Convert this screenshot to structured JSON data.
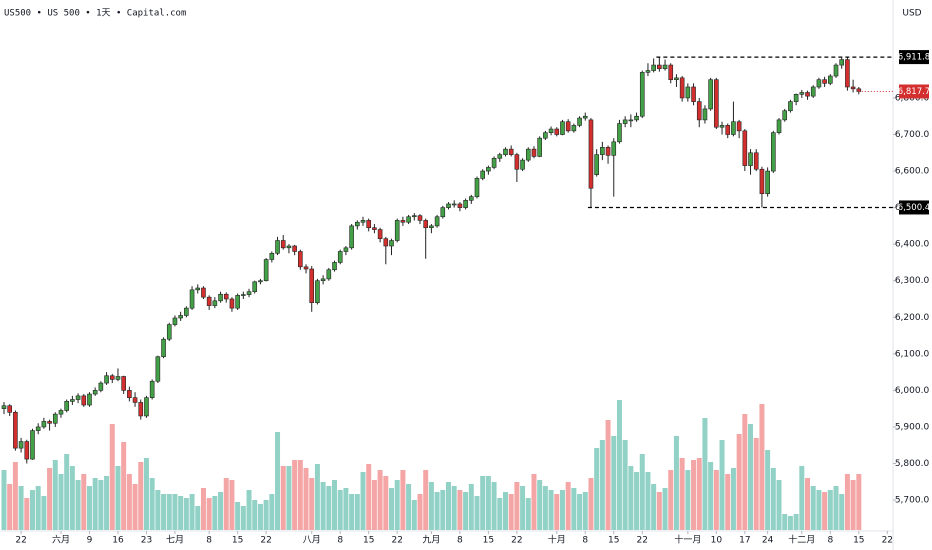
{
  "chart_data": {
    "type": "candlestick",
    "title": "US500 • US 500 • 1天 • Capital.com",
    "currency": "USD",
    "up_color": "#43a047",
    "down_color": "#d32f2f",
    "up_volume_color": "#92d2c6",
    "down_volume_color": "#f4a6a6",
    "xlim": [
      -0.7,
      156
    ],
    "ylim": [
      5618,
      7068
    ],
    "yticks": [
      {
        "value": 5700,
        "label": "5,700.0"
      },
      {
        "value": 5800,
        "label": "5,800.0"
      },
      {
        "value": 5900,
        "label": "5,900.0"
      },
      {
        "value": 6000,
        "label": "6,000.0"
      },
      {
        "value": 6100,
        "label": "6,100.0"
      },
      {
        "value": 6200,
        "label": "6,200.0"
      },
      {
        "value": 6300,
        "label": "6,300.0"
      },
      {
        "value": 6400,
        "label": "6,400.0"
      },
      {
        "value": 6500,
        "label": "6,500.0"
      },
      {
        "value": 6600,
        "label": "6,600.0"
      },
      {
        "value": 6700,
        "label": "6,700.0"
      },
      {
        "value": 6800,
        "label": "6,800.0"
      }
    ],
    "xticks": [
      {
        "value": 3,
        "label": "22"
      },
      {
        "value": 10,
        "label": "六月"
      },
      {
        "value": 15,
        "label": "9"
      },
      {
        "value": 20,
        "label": "16"
      },
      {
        "value": 25,
        "label": "23"
      },
      {
        "value": 30,
        "label": "七月"
      },
      {
        "value": 36,
        "label": "8"
      },
      {
        "value": 41,
        "label": "15"
      },
      {
        "value": 46,
        "label": "22"
      },
      {
        "value": 54,
        "label": "八月"
      },
      {
        "value": 59,
        "label": "8"
      },
      {
        "value": 64,
        "label": "15"
      },
      {
        "value": 69,
        "label": "22"
      },
      {
        "value": 75,
        "label": "九月"
      },
      {
        "value": 80,
        "label": "8"
      },
      {
        "value": 85,
        "label": "15"
      },
      {
        "value": 90,
        "label": "22"
      },
      {
        "value": 97,
        "label": "十月"
      },
      {
        "value": 102,
        "label": "8"
      },
      {
        "value": 107,
        "label": "15"
      },
      {
        "value": 112,
        "label": "22"
      },
      {
        "value": 120,
        "label": "十一月"
      },
      {
        "value": 125,
        "label": "10"
      },
      {
        "value": 130,
        "label": "17"
      },
      {
        "value": 134,
        "label": "24"
      },
      {
        "value": 140,
        "label": "十二月"
      },
      {
        "value": 145,
        "label": "8"
      },
      {
        "value": 150,
        "label": "15"
      },
      {
        "value": 155,
        "label": "22"
      }
    ],
    "levels": [
      {
        "value": 6911.8,
        "label": "6,911.8",
        "from": 115,
        "color": "#000000"
      },
      {
        "value": 6500.4,
        "label": "6,500.4",
        "from": 103,
        "color": "#000000"
      }
    ],
    "last_price": {
      "value": 6817.7,
      "label": "6,817.7",
      "color": "#d32f2f"
    },
    "ohlc": [
      [
        5950,
        5968,
        5935,
        5958
      ],
      [
        5958,
        5962,
        5930,
        5940
      ],
      [
        5940,
        5945,
        5835,
        5842
      ],
      [
        5842,
        5870,
        5830,
        5860
      ],
      [
        5860,
        5865,
        5800,
        5812
      ],
      [
        5812,
        5895,
        5810,
        5890
      ],
      [
        5890,
        5910,
        5880,
        5900
      ],
      [
        5900,
        5925,
        5895,
        5915
      ],
      [
        5915,
        5920,
        5890,
        5910
      ],
      [
        5910,
        5940,
        5900,
        5935
      ],
      [
        5935,
        5950,
        5925,
        5945
      ],
      [
        5945,
        5975,
        5940,
        5970
      ],
      [
        5970,
        5985,
        5960,
        5975
      ],
      [
        5975,
        5992,
        5965,
        5985
      ],
      [
        5985,
        5990,
        5955,
        5960
      ],
      [
        5960,
        5995,
        5955,
        5990
      ],
      [
        5990,
        6008,
        5985,
        6000
      ],
      [
        6000,
        6025,
        5995,
        6020
      ],
      [
        6020,
        6050,
        6015,
        6040
      ],
      [
        6040,
        6045,
        6020,
        6030
      ],
      [
        6030,
        6060,
        6025,
        6038
      ],
      [
        6038,
        6040,
        5990,
        6000
      ],
      [
        6000,
        6010,
        5970,
        5980
      ],
      [
        5980,
        5995,
        5955,
        5967
      ],
      [
        5967,
        5975,
        5920,
        5930
      ],
      [
        5930,
        5985,
        5925,
        5980
      ],
      [
        5980,
        6030,
        5975,
        6025
      ],
      [
        6025,
        6095,
        6020,
        6092
      ],
      [
        6092,
        6145,
        6088,
        6140
      ],
      [
        6140,
        6185,
        6135,
        6180
      ],
      [
        6180,
        6205,
        6175,
        6198
      ],
      [
        6198,
        6215,
        6190,
        6205
      ],
      [
        6205,
        6230,
        6200,
        6225
      ],
      [
        6225,
        6285,
        6220,
        6275
      ],
      [
        6275,
        6290,
        6265,
        6280
      ],
      [
        6280,
        6285,
        6250,
        6255
      ],
      [
        6255,
        6260,
        6220,
        6232
      ],
      [
        6232,
        6255,
        6225,
        6245
      ],
      [
        6245,
        6270,
        6240,
        6263
      ],
      [
        6263,
        6268,
        6240,
        6250
      ],
      [
        6250,
        6255,
        6215,
        6225
      ],
      [
        6225,
        6265,
        6220,
        6260
      ],
      [
        6260,
        6270,
        6250,
        6262
      ],
      [
        6262,
        6278,
        6255,
        6270
      ],
      [
        6270,
        6300,
        6265,
        6297
      ],
      [
        6297,
        6305,
        6290,
        6300
      ],
      [
        6300,
        6362,
        6298,
        6358
      ],
      [
        6358,
        6380,
        6350,
        6375
      ],
      [
        6375,
        6420,
        6370,
        6410
      ],
      [
        6410,
        6425,
        6385,
        6390
      ],
      [
        6390,
        6400,
        6375,
        6395
      ],
      [
        6395,
        6398,
        6370,
        6380
      ],
      [
        6380,
        6385,
        6330,
        6338
      ],
      [
        6338,
        6345,
        6320,
        6332
      ],
      [
        6332,
        6340,
        6215,
        6240
      ],
      [
        6240,
        6305,
        6235,
        6300
      ],
      [
        6300,
        6315,
        6290,
        6305
      ],
      [
        6305,
        6335,
        6300,
        6330
      ],
      [
        6330,
        6355,
        6325,
        6350
      ],
      [
        6350,
        6385,
        6345,
        6380
      ],
      [
        6380,
        6395,
        6370,
        6390
      ],
      [
        6390,
        6455,
        6385,
        6450
      ],
      [
        6450,
        6465,
        6440,
        6460
      ],
      [
        6460,
        6475,
        6450,
        6465
      ],
      [
        6465,
        6470,
        6435,
        6445
      ],
      [
        6445,
        6455,
        6430,
        6440
      ],
      [
        6440,
        6445,
        6405,
        6415
      ],
      [
        6415,
        6420,
        6345,
        6395
      ],
      [
        6395,
        6415,
        6370,
        6410
      ],
      [
        6410,
        6470,
        6405,
        6465
      ],
      [
        6465,
        6475,
        6450,
        6460
      ],
      [
        6460,
        6480,
        6455,
        6475
      ],
      [
        6475,
        6485,
        6465,
        6478
      ],
      [
        6478,
        6482,
        6455,
        6465
      ],
      [
        6465,
        6470,
        6360,
        6445
      ],
      [
        6445,
        6455,
        6430,
        6450
      ],
      [
        6450,
        6480,
        6445,
        6475
      ],
      [
        6475,
        6505,
        6470,
        6500
      ],
      [
        6500,
        6515,
        6495,
        6510
      ],
      [
        6510,
        6520,
        6500,
        6510
      ],
      [
        6510,
        6515,
        6490,
        6500
      ],
      [
        6500,
        6525,
        6495,
        6520
      ],
      [
        6520,
        6535,
        6510,
        6530
      ],
      [
        6530,
        6585,
        6525,
        6580
      ],
      [
        6580,
        6605,
        6575,
        6600
      ],
      [
        6600,
        6615,
        6590,
        6610
      ],
      [
        6610,
        6640,
        6605,
        6635
      ],
      [
        6635,
        6650,
        6625,
        6645
      ],
      [
        6645,
        6665,
        6640,
        6660
      ],
      [
        6660,
        6670,
        6640,
        6645
      ],
      [
        6645,
        6650,
        6570,
        6605
      ],
      [
        6605,
        6635,
        6600,
        6630
      ],
      [
        6630,
        6665,
        6625,
        6660
      ],
      [
        6660,
        6668,
        6635,
        6640
      ],
      [
        6640,
        6695,
        6638,
        6690
      ],
      [
        6690,
        6710,
        6685,
        6705
      ],
      [
        6705,
        6722,
        6698,
        6715
      ],
      [
        6715,
        6720,
        6695,
        6700
      ],
      [
        6700,
        6740,
        6698,
        6735
      ],
      [
        6735,
        6742,
        6705,
        6710
      ],
      [
        6710,
        6730,
        6705,
        6725
      ],
      [
        6725,
        6750,
        6720,
        6745
      ],
      [
        6745,
        6760,
        6738,
        6750
      ],
      [
        6740,
        6745,
        6500.4,
        6553
      ],
      [
        6590,
        6660,
        6585,
        6645
      ],
      [
        6645,
        6680,
        6630,
        6665
      ],
      [
        6665,
        6670,
        6620,
        6643
      ],
      [
        6643,
        6690,
        6530,
        6680
      ],
      [
        6680,
        6740,
        6675,
        6730
      ],
      [
        6730,
        6750,
        6720,
        6740
      ],
      [
        6740,
        6755,
        6720,
        6740
      ],
      [
        6740,
        6760,
        6735,
        6750
      ],
      [
        6750,
        6875,
        6745,
        6870
      ],
      [
        6870,
        6895,
        6860,
        6875
      ],
      [
        6875,
        6908,
        6870,
        6890
      ],
      [
        6890,
        6911.8,
        6872,
        6880
      ],
      [
        6880,
        6905,
        6875,
        6890
      ],
      [
        6890,
        6895,
        6840,
        6850
      ],
      [
        6850,
        6865,
        6830,
        6855
      ],
      [
        6855,
        6860,
        6790,
        6800
      ],
      [
        6800,
        6840,
        6790,
        6830
      ],
      [
        6830,
        6840,
        6780,
        6790
      ],
      [
        6790,
        6800,
        6720,
        6740
      ],
      [
        6740,
        6780,
        6730,
        6770
      ],
      [
        6770,
        6855,
        6765,
        6850
      ],
      [
        6850,
        6855,
        6715,
        6720
      ],
      [
        6720,
        6735,
        6700,
        6725
      ],
      [
        6725,
        6730,
        6690,
        6700
      ],
      [
        6700,
        6790,
        6695,
        6735
      ],
      [
        6735,
        6740,
        6690,
        6710
      ],
      [
        6710,
        6715,
        6600,
        6615
      ],
      [
        6615,
        6660,
        6590,
        6650
      ],
      [
        6650,
        6660,
        6600,
        6605
      ],
      [
        6605,
        6612,
        6500.4,
        6538
      ],
      [
        6538,
        6610,
        6530,
        6600
      ],
      [
        6600,
        6710,
        6595,
        6705
      ],
      [
        6705,
        6745,
        6700,
        6740
      ],
      [
        6740,
        6770,
        6735,
        6765
      ],
      [
        6765,
        6795,
        6760,
        6790
      ],
      [
        6790,
        6812,
        6780,
        6810
      ],
      [
        6810,
        6822,
        6800,
        6815
      ],
      [
        6815,
        6820,
        6795,
        6805
      ],
      [
        6805,
        6835,
        6800,
        6830
      ],
      [
        6830,
        6855,
        6825,
        6850
      ],
      [
        6850,
        6858,
        6830,
        6840
      ],
      [
        6840,
        6865,
        6835,
        6860
      ],
      [
        6860,
        6895,
        6855,
        6890
      ],
      [
        6890,
        6910,
        6880,
        6905
      ],
      [
        6905,
        6911.8,
        6820,
        6830
      ],
      [
        6830,
        6850,
        6815,
        6825
      ],
      [
        6825,
        6830,
        6810,
        6817.7
      ]
    ],
    "volume": [
      3.0,
      2.3,
      3.4,
      2.2,
      1.6,
      2.0,
      2.2,
      1.7,
      3.1,
      3.5,
      2.8,
      3.8,
      3.2,
      2.5,
      2.8,
      2.2,
      2.6,
      2.5,
      2.7,
      5.3,
      3.2,
      4.4,
      2.8,
      2.3,
      3.4,
      3.6,
      2.6,
      2.0,
      1.8,
      1.8,
      1.8,
      1.7,
      1.6,
      1.8,
      1.2,
      2.1,
      1.6,
      1.7,
      1.9,
      2.6,
      2.5,
      1.4,
      1.2,
      2.0,
      1.5,
      1.3,
      1.5,
      1.8,
      4.9,
      3.2,
      3.2,
      3.5,
      3.5,
      3.1,
      2.6,
      3.3,
      2.4,
      2.2,
      2.5,
      2.0,
      2.1,
      1.8,
      1.8,
      2.9,
      3.3,
      2.5,
      3.0,
      2.7,
      2.1,
      2.5,
      3.0,
      2.3,
      1.5,
      1.8,
      3.0,
      2.4,
      1.9,
      2.0,
      2.4,
      2.2,
      2.0,
      1.9,
      2.3,
      1.7,
      2.7,
      2.7,
      2.4,
      1.6,
      1.9,
      1.8,
      2.4,
      2.2,
      1.6,
      2.8,
      2.5,
      2.2,
      2.0,
      1.8,
      2.0,
      2.4,
      2.1,
      1.8,
      1.9,
      2.6,
      4.1,
      4.5,
      5.5,
      4.7,
      6.5,
      4.5,
      3.2,
      2.9,
      3.8,
      2.9,
      2.3,
      1.9,
      2.1,
      3.0,
      4.7,
      3.6,
      3.0,
      3.5,
      3.6,
      5.6,
      3.4,
      3.0,
      4.5,
      2.8,
      3.1,
      4.8,
      5.8,
      5.3,
      4.6,
      6.3,
      4.0,
      3.1,
      2.5,
      0.8,
      0.7,
      0.8,
      3.2,
      2.6,
      2.2,
      2.0,
      1.9,
      2.0,
      2.2,
      1.8,
      2.8,
      2.5,
      2.8
    ]
  }
}
